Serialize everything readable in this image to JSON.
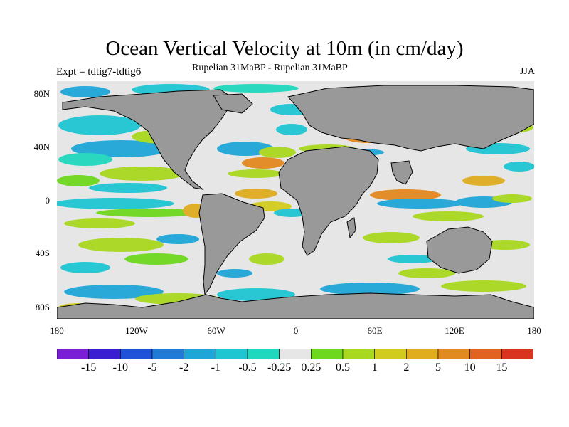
{
  "header": {
    "title": "Ocean Vertical Velocity at 10m (in cm/day)",
    "experiment": "Expt = tdtig7-tdtig6",
    "subtitle": "Rupelian  31MaBP - Rupelian  31MaBP",
    "season": "JJA"
  },
  "axes": {
    "y_ticks": [
      "80N",
      "40N",
      "0",
      "40S",
      "80S"
    ],
    "x_ticks": [
      "180",
      "120W",
      "60W",
      "0",
      "60E",
      "120E",
      "180"
    ]
  },
  "colorbar": {
    "labels": [
      "-15",
      "-10",
      "-5",
      "-2",
      "-1",
      "-0.5",
      "-0.25",
      "0.25",
      "0.5",
      "1",
      "2",
      "5",
      "10",
      "15"
    ],
    "colors": [
      "#7a1fd6",
      "#3a1fd0",
      "#1f52d8",
      "#1f7ad8",
      "#1fa6d8",
      "#1fc6d2",
      "#1fd8bd",
      "#e6e6e6",
      "#6ed81f",
      "#a8d81f",
      "#d2cb1f",
      "#e0ad1f",
      "#e2891f",
      "#e2621f",
      "#d8341f"
    ]
  },
  "map_colors": {
    "land": "#999999",
    "neutral": "#e6e6e6",
    "coast": "#000000"
  }
}
